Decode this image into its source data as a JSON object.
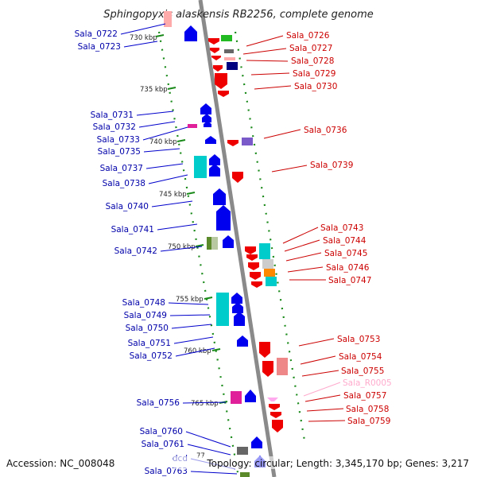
{
  "title": "Sphingopyxis alaskensis RB2256, complete genome",
  "footer": {
    "accession": "Accession: NC_008048",
    "summary": "Topology: circular; Length: 3,345,170 bp; Genes: 3,217"
  },
  "colors": {
    "axis": "#808080",
    "reverse_strand": "#0000ff",
    "forward_strand": "#ff0000",
    "rna": "#ffaaee",
    "track_dots": "#1a8a1a"
  },
  "chart_data": {
    "type": "genome-map",
    "ticks": [
      "730 kbp",
      "735 kbp",
      "740 kbp",
      "745 kbp",
      "750 kbp",
      "755 kbp",
      "760 kbp",
      "765 kbp",
      "77"
    ],
    "left_labels": [
      "Sala_0722",
      "Sala_0723",
      "Sala_0731",
      "Sala_0732",
      "Sala_0733",
      "Sala_0735",
      "Sala_0737",
      "Sala_0738",
      "Sala_0740",
      "Sala_0741",
      "Sala_0742",
      "Sala_0748",
      "Sala_0749",
      "Sala_0750",
      "Sala_0751",
      "Sala_0752",
      "Sala_0756",
      "Sala_0760",
      "Sala_0761",
      "dcd",
      "Sala_0763"
    ],
    "right_labels": [
      "Sala_0726",
      "Sala_0727",
      "Sala_0728",
      "Sala_0729",
      "Sala_0730",
      "Sala_0736",
      "Sala_0739",
      "Sala_0743",
      "Sala_0744",
      "Sala_0745",
      "Sala_0746",
      "Sala_0747",
      "Sala_0753",
      "Sala_0754",
      "Sala_0755",
      "Sala_R0005",
      "Sala_0757",
      "Sala_0758",
      "Sala_0759"
    ]
  }
}
